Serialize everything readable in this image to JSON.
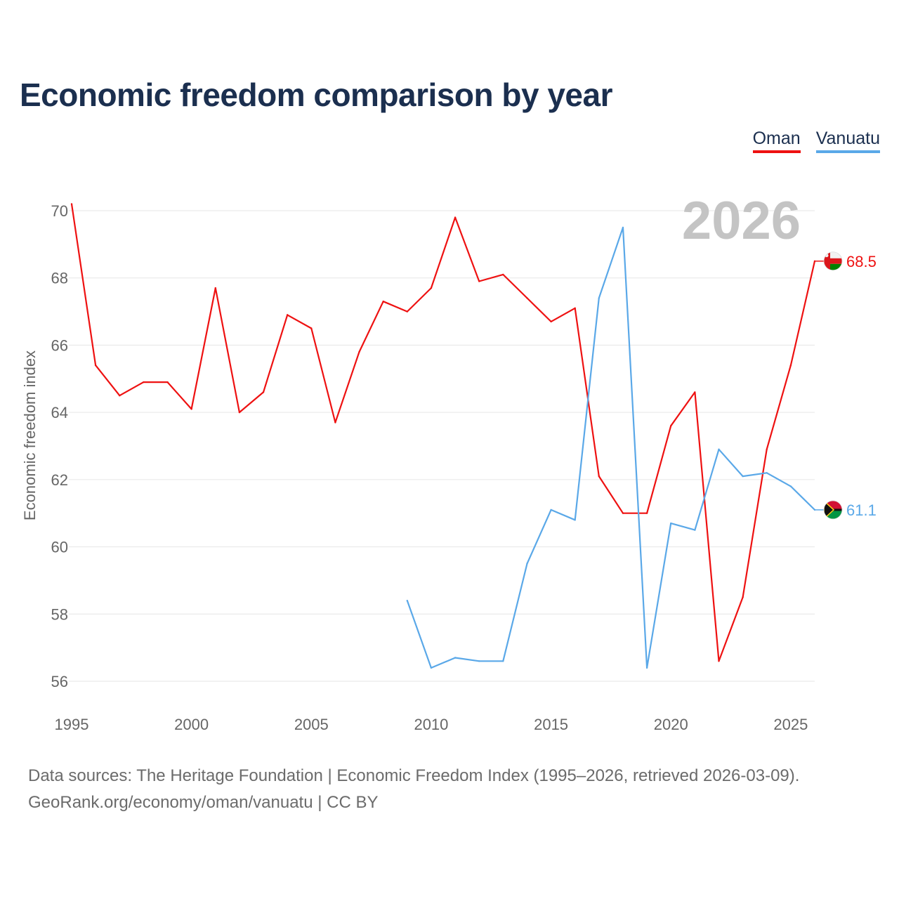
{
  "title": "Economic freedom comparison by year",
  "legend": [
    {
      "name": "Oman",
      "color": "#ee1111"
    },
    {
      "name": "Vanuatu",
      "color": "#5aa8e8"
    }
  ],
  "year_watermark": "2026",
  "source": {
    "line1": "Data sources: The Heritage Foundation | Economic Freedom Index (1995–2026, retrieved 2026-03-09).",
    "line2": "GeoRank.org/economy/oman/vanuatu | CC BY"
  },
  "chart_data": {
    "type": "line",
    "title": "Economic freedom comparison by year",
    "xlabel": "",
    "ylabel": "Economic freedom index",
    "xlim": [
      1995,
      2026
    ],
    "ylim": [
      56,
      70
    ],
    "xticks": [
      1995,
      2000,
      2005,
      2010,
      2015,
      2020,
      2025
    ],
    "yticks": [
      56,
      58,
      60,
      62,
      64,
      66,
      68,
      70
    ],
    "grid": true,
    "legend_position": "top-right",
    "series": [
      {
        "name": "Oman",
        "color": "#ee1111",
        "end_label": "68.5",
        "x": [
          1995,
          1996,
          1997,
          1998,
          1999,
          2000,
          2001,
          2002,
          2003,
          2004,
          2005,
          2006,
          2007,
          2008,
          2009,
          2010,
          2011,
          2012,
          2013,
          2014,
          2015,
          2016,
          2017,
          2018,
          2019,
          2020,
          2021,
          2022,
          2023,
          2024,
          2025,
          2026
        ],
        "values": [
          70.2,
          65.4,
          64.5,
          64.9,
          64.9,
          64.1,
          67.7,
          64.0,
          64.6,
          66.9,
          66.5,
          63.7,
          65.8,
          67.3,
          67.0,
          67.7,
          69.8,
          67.9,
          68.1,
          67.4,
          66.7,
          67.1,
          62.1,
          61.0,
          61.0,
          63.6,
          64.6,
          56.6,
          58.5,
          62.9,
          65.4,
          68.5
        ]
      },
      {
        "name": "Vanuatu",
        "color": "#5aa8e8",
        "end_label": "61.1",
        "x": [
          2009,
          2010,
          2011,
          2012,
          2013,
          2014,
          2015,
          2016,
          2017,
          2018,
          2019,
          2020,
          2021,
          2022,
          2023,
          2024,
          2025,
          2026
        ],
        "values": [
          58.4,
          56.4,
          56.7,
          56.6,
          56.6,
          59.5,
          61.1,
          60.8,
          67.4,
          69.5,
          56.4,
          60.7,
          60.5,
          62.9,
          62.1,
          62.2,
          61.8,
          61.1
        ]
      }
    ]
  }
}
